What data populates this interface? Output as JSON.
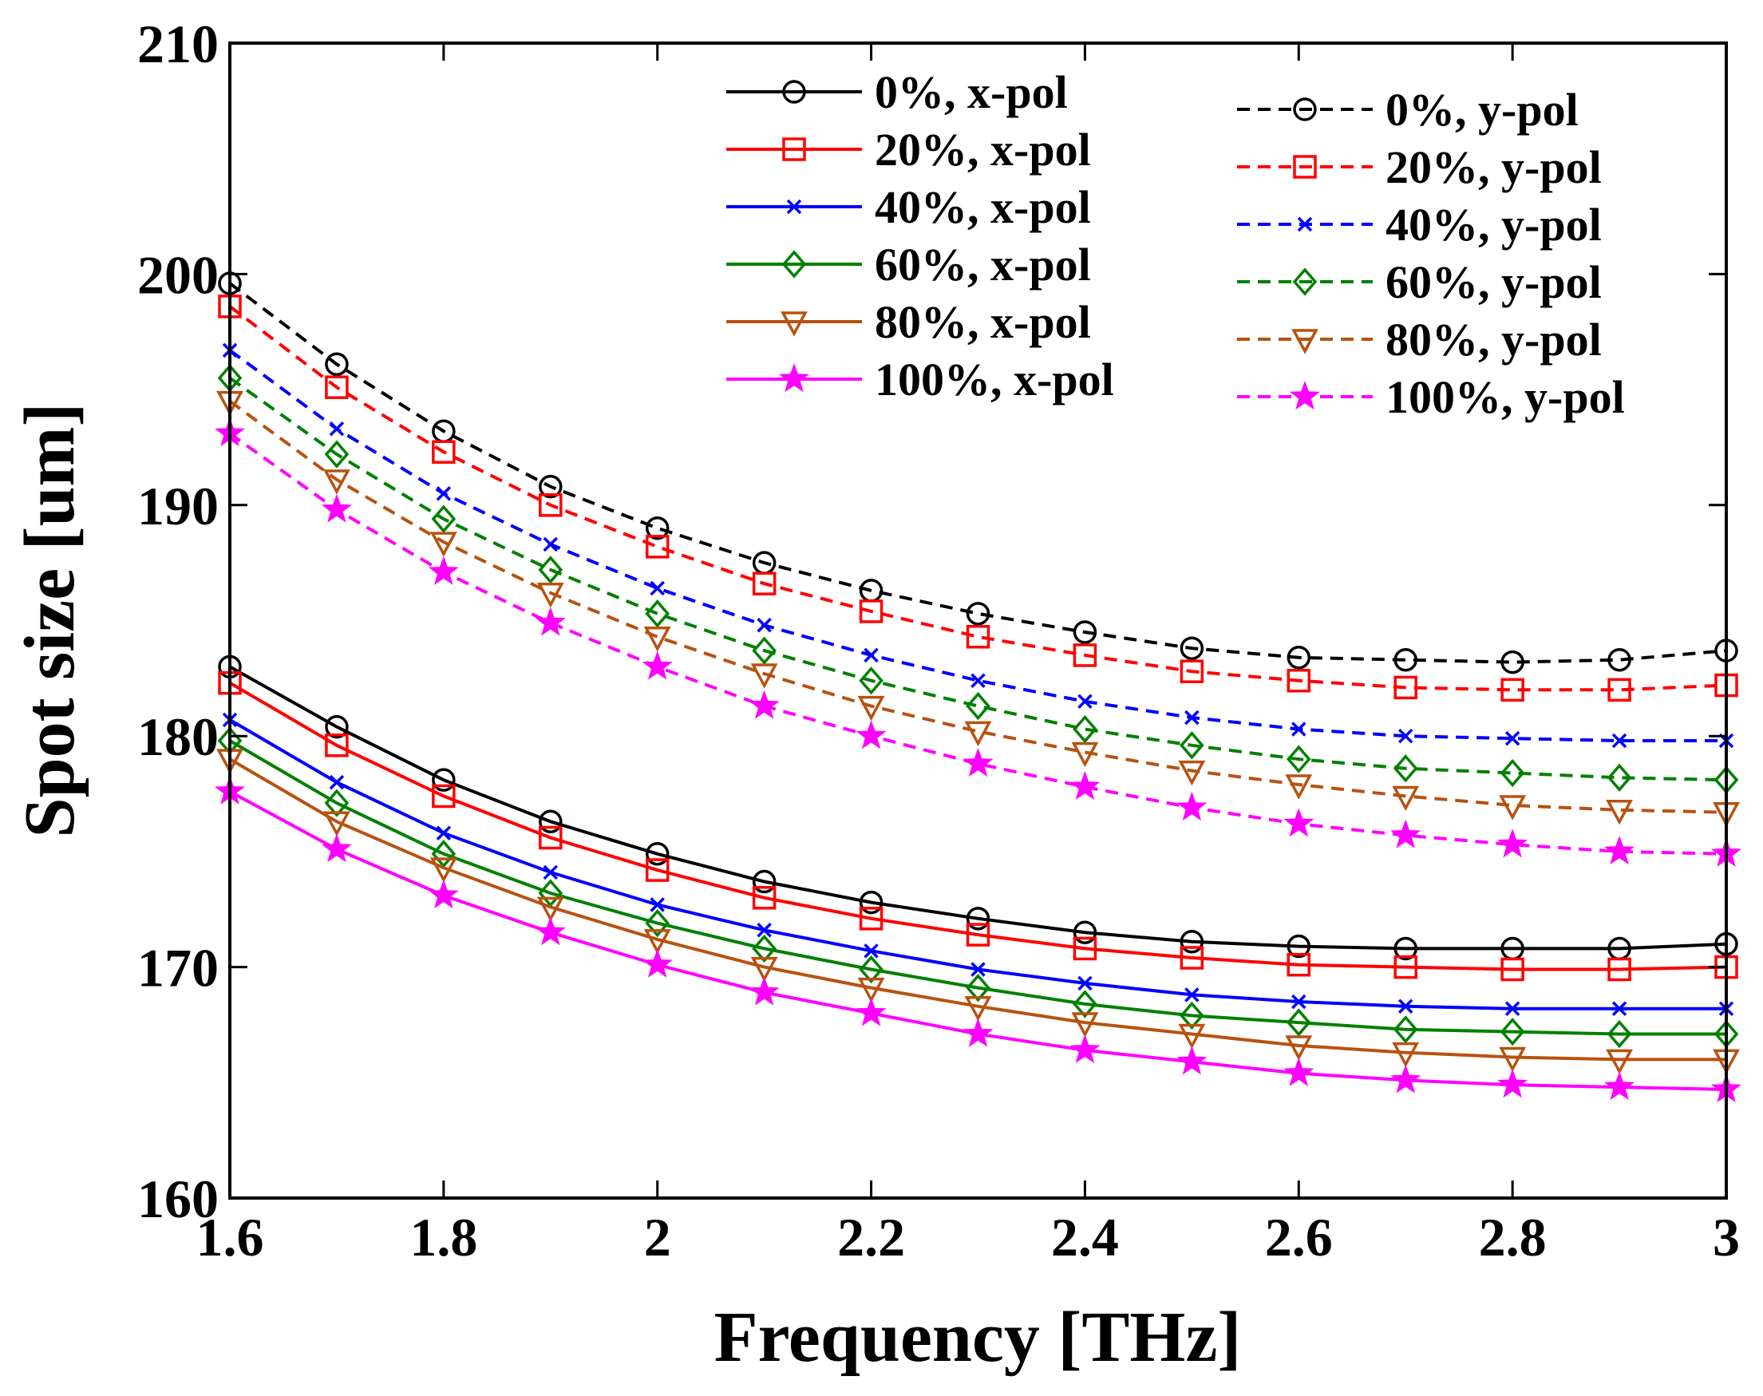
{
  "chart_data": {
    "type": "line",
    "xlabel": "Frequency [THz]",
    "ylabel": "Spot size [um]",
    "xlim": [
      1.6,
      3.0
    ],
    "ylim": [
      160,
      210
    ],
    "x": [
      1.6,
      1.7,
      1.8,
      1.9,
      2.0,
      2.1,
      2.2,
      2.3,
      2.4,
      2.5,
      2.6,
      2.7,
      2.8,
      2.9,
      3.0
    ],
    "x_ticks": [
      1.6,
      1.8,
      2.0,
      2.2,
      2.4,
      2.6,
      2.8,
      3.0
    ],
    "x_tick_labels": [
      "1.6",
      "1.8",
      "2",
      "2.2",
      "2.4",
      "2.6",
      "2.8",
      "3"
    ],
    "y_ticks": [
      160,
      170,
      180,
      190,
      200,
      210
    ],
    "y_tick_labels": [
      "160",
      "170",
      "180",
      "190",
      "200",
      "210"
    ],
    "grid": false,
    "legend_position": "top-right",
    "series": [
      {
        "name": "0%, x-pol",
        "color": "#000000",
        "dash": "solid",
        "marker": "circle",
        "values": [
          183.0,
          180.4,
          178.1,
          176.3,
          174.9,
          173.7,
          172.8,
          172.1,
          171.5,
          171.1,
          170.9,
          170.8,
          170.8,
          170.8,
          171.0
        ]
      },
      {
        "name": "20%, x-pol",
        "color": "#ff0000",
        "dash": "solid",
        "marker": "square",
        "values": [
          182.3,
          179.6,
          177.4,
          175.6,
          174.2,
          173.0,
          172.1,
          171.4,
          170.8,
          170.4,
          170.1,
          170.0,
          169.9,
          169.9,
          170.0
        ]
      },
      {
        "name": "40%, x-pol",
        "color": "#0000ff",
        "dash": "solid",
        "marker": "x",
        "values": [
          180.7,
          178.0,
          175.8,
          174.1,
          172.7,
          171.6,
          170.7,
          169.9,
          169.3,
          168.8,
          168.5,
          168.3,
          168.2,
          168.2,
          168.2
        ]
      },
      {
        "name": "60%, x-pol",
        "color": "#008000",
        "dash": "solid",
        "marker": "diamond",
        "values": [
          179.8,
          177.1,
          174.9,
          173.2,
          171.9,
          170.8,
          169.9,
          169.1,
          168.4,
          167.9,
          167.6,
          167.3,
          167.2,
          167.1,
          167.1
        ]
      },
      {
        "name": "80%, x-pol",
        "color": "#b8520f",
        "dash": "solid",
        "marker": "triangle-down",
        "values": [
          179.0,
          176.3,
          174.3,
          172.6,
          171.2,
          170.0,
          169.1,
          168.3,
          167.6,
          167.1,
          166.6,
          166.3,
          166.1,
          166.0,
          166.0
        ]
      },
      {
        "name": "100%, x-pol",
        "color": "#ff00ff",
        "dash": "solid",
        "marker": "star",
        "values": [
          177.6,
          175.1,
          173.1,
          171.5,
          170.1,
          168.9,
          168.0,
          167.1,
          166.4,
          165.9,
          165.4,
          165.1,
          164.9,
          164.8,
          164.7
        ]
      },
      {
        "name": "0%, y-pol",
        "color": "#000000",
        "dash": "dashed",
        "marker": "circle",
        "values": [
          199.6,
          196.1,
          193.2,
          190.8,
          189.0,
          187.5,
          186.3,
          185.3,
          184.5,
          183.8,
          183.4,
          183.3,
          183.2,
          183.3,
          183.7
        ]
      },
      {
        "name": "20%, y-pol",
        "color": "#ff0000",
        "dash": "dashed",
        "marker": "square",
        "values": [
          198.6,
          195.1,
          192.3,
          190.0,
          188.2,
          186.6,
          185.4,
          184.3,
          183.5,
          182.8,
          182.4,
          182.1,
          182.0,
          182.0,
          182.2
        ]
      },
      {
        "name": "40%, y-pol",
        "color": "#0000ff",
        "dash": "dashed",
        "marker": "x",
        "values": [
          196.7,
          193.3,
          190.5,
          188.3,
          186.4,
          184.8,
          183.5,
          182.4,
          181.5,
          180.8,
          180.3,
          180.0,
          179.9,
          179.8,
          179.8
        ]
      },
      {
        "name": "60%, y-pol",
        "color": "#008000",
        "dash": "dashed",
        "marker": "diamond",
        "values": [
          195.5,
          192.2,
          189.4,
          187.2,
          185.3,
          183.7,
          182.4,
          181.3,
          180.3,
          179.6,
          179.0,
          178.6,
          178.4,
          178.2,
          178.1
        ]
      },
      {
        "name": "80%, y-pol",
        "color": "#b8520f",
        "dash": "dashed",
        "marker": "triangle-down",
        "values": [
          194.5,
          191.1,
          188.4,
          186.2,
          184.3,
          182.7,
          181.3,
          180.2,
          179.3,
          178.5,
          177.9,
          177.4,
          177.0,
          176.8,
          176.7
        ]
      },
      {
        "name": "100%, y-pol",
        "color": "#ff00ff",
        "dash": "dashed",
        "marker": "star",
        "values": [
          193.1,
          189.8,
          187.1,
          184.9,
          183.0,
          181.3,
          180.0,
          178.8,
          177.8,
          176.9,
          176.2,
          175.7,
          175.3,
          175.0,
          174.9
        ]
      }
    ]
  }
}
